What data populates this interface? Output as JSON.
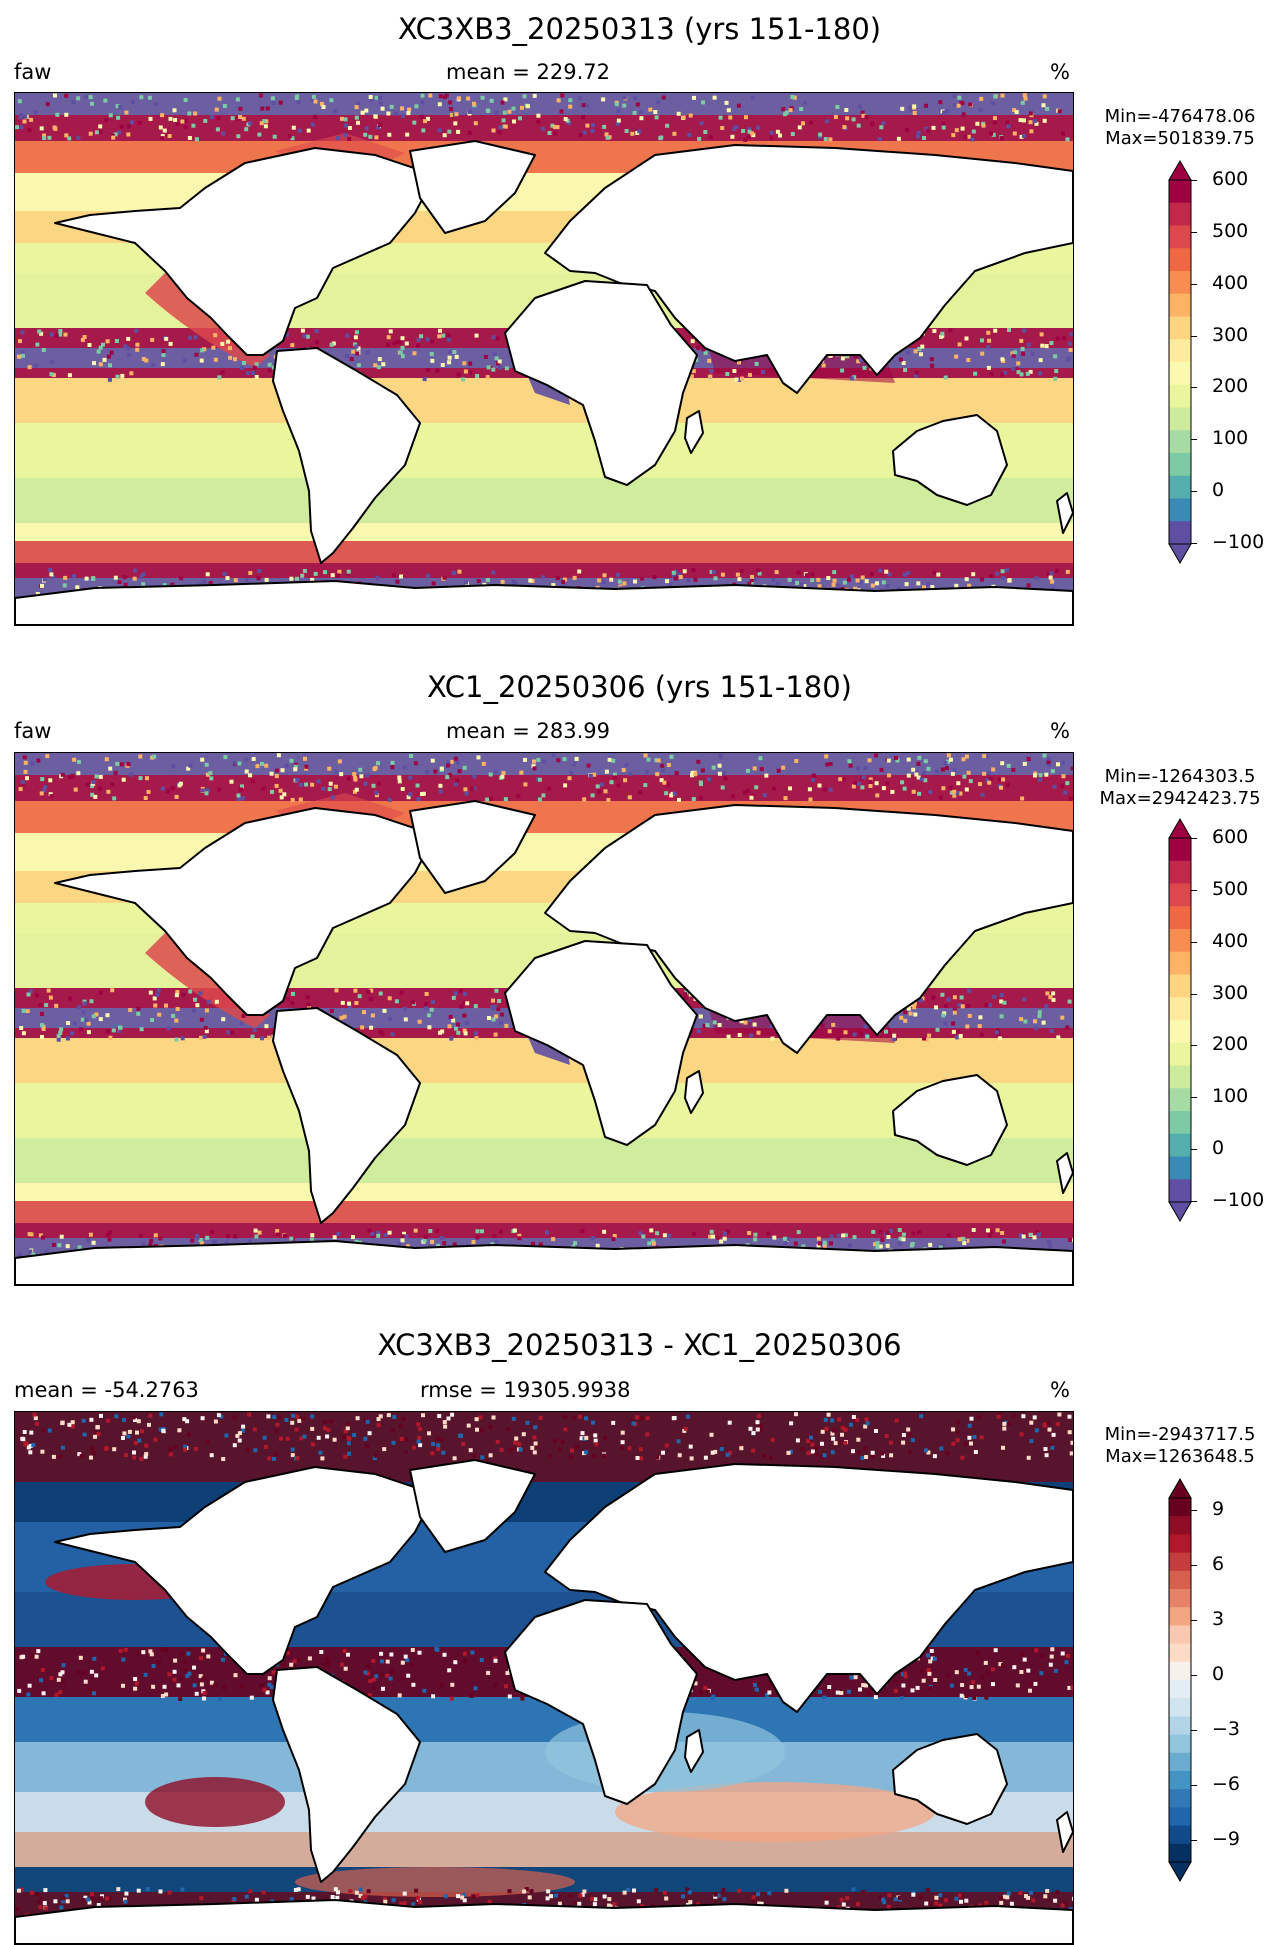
{
  "chart_data": [
    {
      "type": "heatmap",
      "title": "XC3XB3_20250313 (yrs 151-180)",
      "left_label": "faw",
      "center_label": "mean = 229.72",
      "right_label": "%",
      "min_text": "Min=-476478.06",
      "max_text": "Max=501839.75",
      "colorbar": {
        "ticks": [
          "600",
          "500",
          "400",
          "300",
          "200",
          "100",
          "0",
          "−100"
        ],
        "colors": [
          "#9e0142",
          "#c1294a",
          "#dc494c",
          "#f06744",
          "#f88d51",
          "#fdb365",
          "#fed481",
          "#feeb9e",
          "#fbf8b0",
          "#eaf69e",
          "#cdeb9d",
          "#a6dba4",
          "#7ccba5",
          "#54aead",
          "#3a8ab8",
          "#5e4fa2"
        ],
        "extend": "both"
      }
    },
    {
      "type": "heatmap",
      "title": "XC1_20250306 (yrs 151-180)",
      "left_label": "faw",
      "center_label": "mean = 283.99",
      "right_label": "%",
      "min_text": "Min=-1264303.5",
      "max_text": "Max=2942423.75",
      "colorbar": {
        "ticks": [
          "600",
          "500",
          "400",
          "300",
          "200",
          "100",
          "0",
          "−100"
        ],
        "colors": [
          "#9e0142",
          "#c1294a",
          "#dc494c",
          "#f06744",
          "#f88d51",
          "#fdb365",
          "#fed481",
          "#feeb9e",
          "#fbf8b0",
          "#eaf69e",
          "#cdeb9d",
          "#a6dba4",
          "#7ccba5",
          "#54aead",
          "#3a8ab8",
          "#5e4fa2"
        ],
        "extend": "both"
      }
    },
    {
      "type": "heatmap",
      "title": "XC3XB3_20250313 - XC1_20250306",
      "left_label": "mean = -54.2763",
      "center_label": "rmse = 19305.9938",
      "right_label": "%",
      "min_text": "Min=-2943717.5",
      "max_text": "Max=1263648.5",
      "colorbar": {
        "ticks": [
          "9",
          "6",
          "3",
          "0",
          "−3",
          "−6",
          "−9"
        ],
        "colors": [
          "#67001f",
          "#8e0d25",
          "#b2182b",
          "#c43c3c",
          "#d6604d",
          "#e58267",
          "#f4a582",
          "#f9c8b0",
          "#fddbc7",
          "#f7f1ee",
          "#e3eef4",
          "#d1e5f0",
          "#b2d4e7",
          "#92c5de",
          "#6aacd0",
          "#4393c3",
          "#3179b6",
          "#2166ac",
          "#104a8a",
          "#053061"
        ],
        "extend": "both"
      }
    }
  ]
}
